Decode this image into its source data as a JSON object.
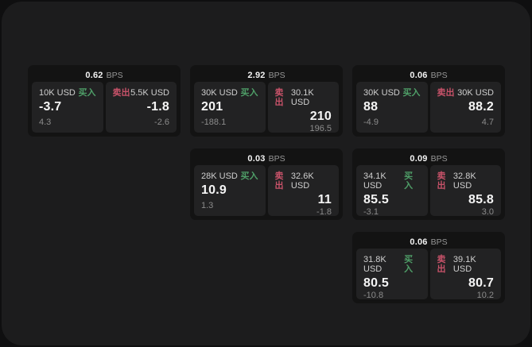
{
  "labels": {
    "bps_unit": "BPS",
    "buy": "买入",
    "sell": "卖出"
  },
  "colors": {
    "buy_tag": "#4f9f68",
    "sell_tag": "#c75269",
    "card_bg": "#131313",
    "panel_bg": "#222223",
    "surface_bg": "#1c1c1d"
  },
  "cards": [
    {
      "bps": "0.62",
      "buy": {
        "amount": "10K USD",
        "value": "-3.7",
        "sub": "4.3"
      },
      "sell": {
        "amount": "5.5K USD",
        "value": "-1.8",
        "sub": "-2.6"
      }
    },
    {
      "bps": "2.92",
      "buy": {
        "amount": "30K USD",
        "value": "201",
        "sub": "-188.1"
      },
      "sell": {
        "amount": "30.1K USD",
        "value": "210",
        "sub": "196.5"
      }
    },
    {
      "bps": "0.06",
      "buy": {
        "amount": "30K USD",
        "value": "88",
        "sub": "-4.9"
      },
      "sell": {
        "amount": "30K USD",
        "value": "88.2",
        "sub": "4.7"
      }
    },
    {
      "bps": "0.03",
      "buy": {
        "amount": "28K USD",
        "value": "10.9",
        "sub": "1.3"
      },
      "sell": {
        "amount": "32.6K USD",
        "value": "11",
        "sub": "-1.8"
      }
    },
    {
      "bps": "0.09",
      "buy": {
        "amount": "34.1K USD",
        "value": "85.5",
        "sub": "-3.1"
      },
      "sell": {
        "amount": "32.8K USD",
        "value": "85.8",
        "sub": "3.0"
      }
    },
    {
      "bps": "0.06",
      "buy": {
        "amount": "31.8K USD",
        "value": "80.5",
        "sub": "-10.8"
      },
      "sell": {
        "amount": "39.1K USD",
        "value": "80.7",
        "sub": "10.2"
      }
    }
  ]
}
